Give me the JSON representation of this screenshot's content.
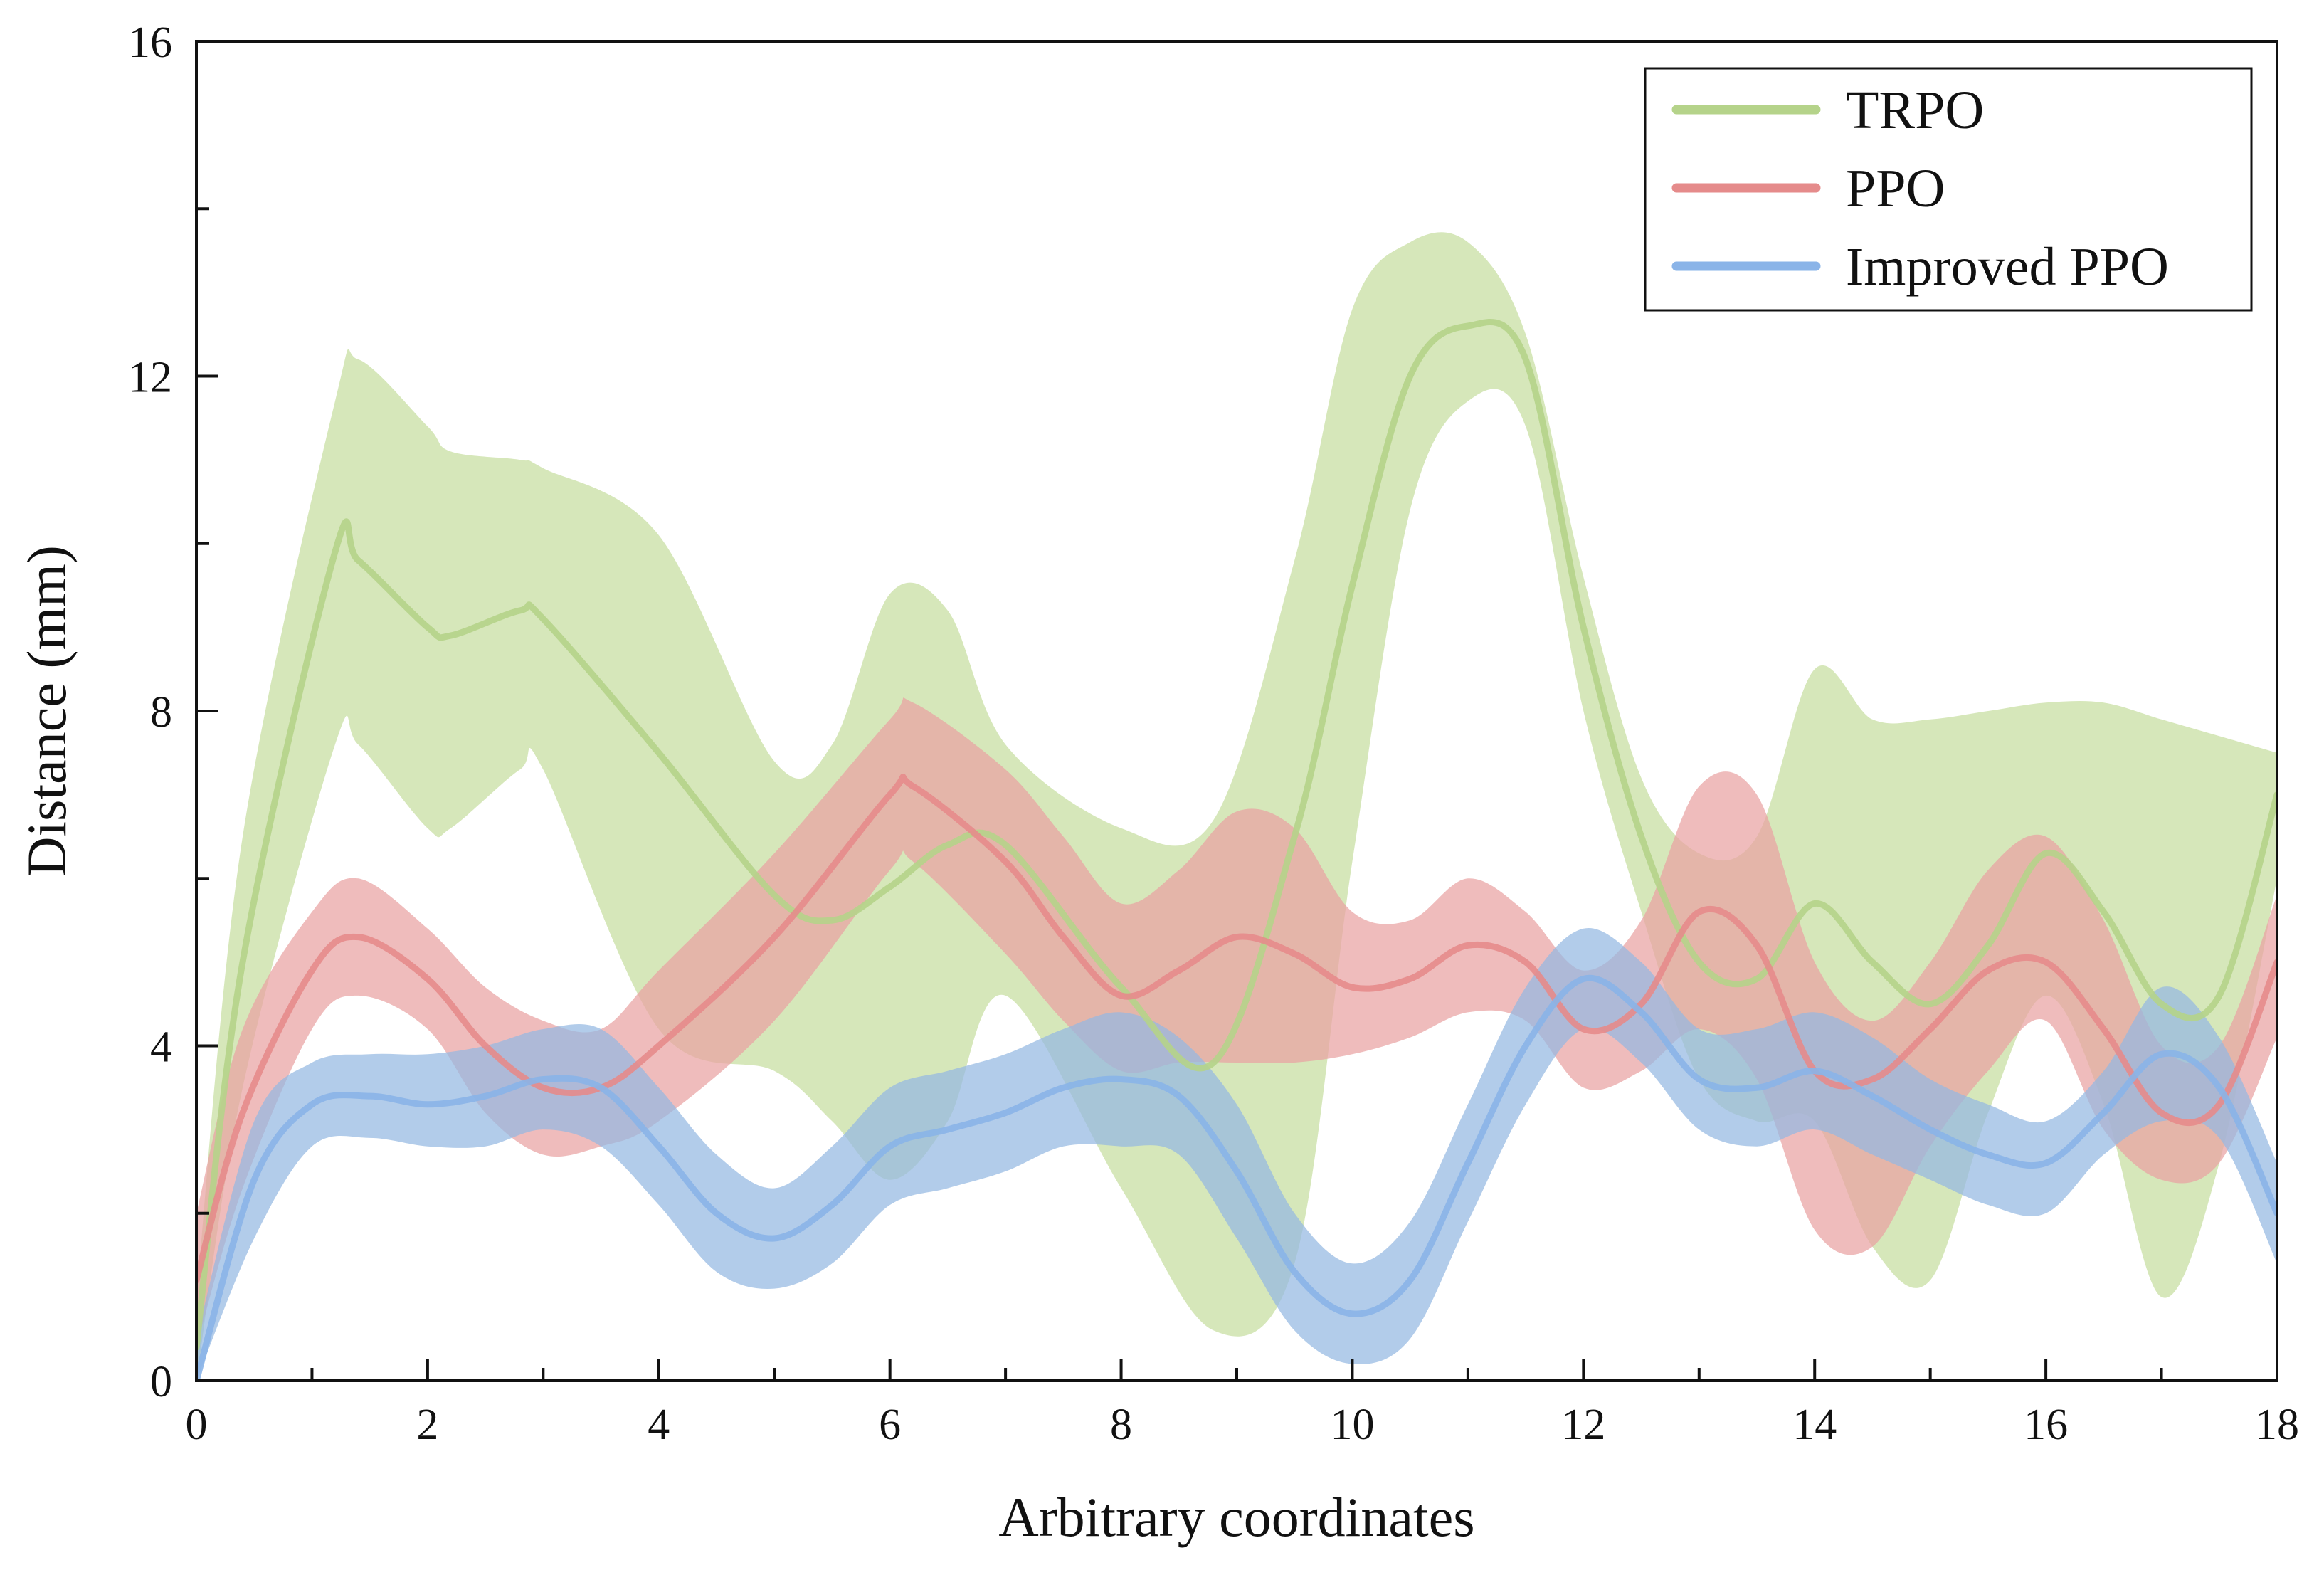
{
  "chart_data": {
    "type": "line",
    "title": "",
    "xlabel": "Arbitrary coordinates",
    "ylabel": "Distance (mm)",
    "xlim": [
      0,
      18
    ],
    "ylim": [
      0,
      16
    ],
    "xticks": [
      0,
      2,
      4,
      6,
      8,
      10,
      12,
      14,
      16,
      18
    ],
    "xtick_labels": [
      "0",
      "2",
      "4",
      "6",
      "8",
      "10",
      "12",
      "14",
      "16",
      "18"
    ],
    "yticks": [
      0,
      4,
      8,
      12,
      16
    ],
    "ytick_labels": [
      "0",
      "4",
      "8",
      "12",
      "16"
    ],
    "grid": false,
    "legend_position": "top-right",
    "series": [
      {
        "name": "TRPO",
        "line_color": "#b5d38a",
        "band_color": "#c6dea0",
        "x": [
          0,
          0.4,
          1.2,
          1.4,
          2.0,
          2.2,
          2.8,
          3.0,
          4.0,
          5.0,
          5.5,
          6.0,
          6.5,
          7.0,
          8.0,
          8.8,
          9.5,
          10.0,
          10.5,
          11.0,
          11.5,
          12.0,
          12.5,
          13.0,
          13.5,
          14.0,
          14.5,
          15.0,
          15.5,
          16.0,
          16.5,
          17.0,
          17.5,
          18.0
        ],
        "mean": [
          0.4,
          5.0,
          9.9,
          9.8,
          9.0,
          8.9,
          9.2,
          9.1,
          7.5,
          5.8,
          5.5,
          5.9,
          6.4,
          6.4,
          4.7,
          3.8,
          6.5,
          9.5,
          12.0,
          12.6,
          12.2,
          9.0,
          6.5,
          5.0,
          4.8,
          5.7,
          5.0,
          4.5,
          5.2,
          6.3,
          5.6,
          4.5,
          4.6,
          7.0
        ],
        "upper": [
          1.0,
          6.5,
          11.7,
          12.2,
          11.4,
          11.1,
          11.0,
          10.9,
          10.1,
          7.4,
          7.6,
          9.4,
          9.2,
          7.6,
          6.6,
          6.7,
          9.8,
          12.8,
          13.6,
          13.6,
          12.5,
          9.6,
          7.2,
          6.3,
          6.5,
          8.5,
          7.9,
          7.9,
          8.0,
          8.1,
          8.1,
          7.9,
          7.7,
          7.5
        ],
        "lower": [
          0.0,
          3.5,
          7.6,
          7.6,
          6.6,
          6.6,
          7.3,
          7.3,
          4.2,
          3.7,
          3.1,
          2.4,
          3.1,
          4.6,
          2.3,
          0.6,
          1.4,
          6.2,
          10.4,
          11.7,
          11.4,
          8.0,
          5.6,
          3.6,
          3.1,
          3.1,
          1.6,
          1.2,
          3.2,
          4.6,
          3.3,
          1.0,
          2.6,
          6.0
        ]
      },
      {
        "name": "PPO",
        "line_color": "#e58b8b",
        "band_color": "#e9a2a2",
        "x": [
          0,
          0.4,
          1.0,
          1.4,
          2.0,
          2.5,
          3.0,
          3.5,
          4.0,
          5.0,
          6.0,
          6.2,
          7.0,
          7.5,
          8.0,
          8.5,
          9.0,
          9.5,
          10.0,
          10.5,
          11.0,
          11.5,
          12.0,
          12.5,
          13.0,
          13.5,
          14.0,
          14.5,
          15.0,
          15.5,
          16.0,
          16.5,
          17.0,
          17.5,
          18.0
        ],
        "mean": [
          1.2,
          3.2,
          4.9,
          5.3,
          4.8,
          4.0,
          3.5,
          3.5,
          4.0,
          5.3,
          7.0,
          7.1,
          6.2,
          5.3,
          4.6,
          4.9,
          5.3,
          5.1,
          4.7,
          4.8,
          5.2,
          5.0,
          4.2,
          4.5,
          5.6,
          5.2,
          3.7,
          3.6,
          4.2,
          4.9,
          5.0,
          4.2,
          3.2,
          3.3,
          5.0
        ],
        "upper": [
          2.0,
          4.2,
          5.6,
          6.0,
          5.4,
          4.7,
          4.3,
          4.2,
          4.9,
          6.3,
          7.9,
          8.1,
          7.3,
          6.5,
          5.7,
          6.1,
          6.8,
          6.6,
          5.6,
          5.5,
          6.0,
          5.6,
          4.9,
          5.5,
          7.1,
          7.0,
          5.0,
          4.3,
          5.0,
          6.1,
          6.5,
          5.5,
          4.0,
          4.0,
          5.8
        ],
        "lower": [
          0.4,
          2.3,
          4.2,
          4.6,
          4.2,
          3.2,
          2.7,
          2.8,
          3.1,
          4.3,
          6.1,
          6.2,
          5.1,
          4.3,
          3.7,
          3.8,
          3.8,
          3.8,
          3.9,
          4.1,
          4.4,
          4.3,
          3.5,
          3.7,
          4.2,
          3.6,
          1.8,
          1.6,
          2.8,
          3.7,
          4.3,
          3.0,
          2.4,
          2.6,
          4.1
        ]
      },
      {
        "name": "Improved PPO",
        "line_color": "#8ab4e8",
        "band_color": "#94b8e2",
        "x": [
          0,
          0.5,
          1.0,
          1.5,
          2.0,
          2.5,
          3.0,
          3.5,
          4.0,
          4.5,
          5.0,
          5.5,
          6.0,
          6.5,
          7.0,
          7.5,
          8.0,
          8.5,
          9.0,
          9.5,
          10.0,
          10.5,
          11.0,
          11.5,
          12.0,
          12.5,
          13.0,
          13.5,
          14.0,
          14.5,
          15.0,
          15.5,
          16.0,
          16.5,
          17.0,
          17.5,
          18.0
        ],
        "mean": [
          0.0,
          2.4,
          3.3,
          3.4,
          3.3,
          3.4,
          3.6,
          3.5,
          2.8,
          2.0,
          1.7,
          2.1,
          2.8,
          3.0,
          3.2,
          3.5,
          3.6,
          3.4,
          2.5,
          1.3,
          0.8,
          1.2,
          2.6,
          4.0,
          4.8,
          4.4,
          3.6,
          3.5,
          3.7,
          3.4,
          3.0,
          2.7,
          2.6,
          3.2,
          3.9,
          3.5,
          2.0
        ],
        "upper": [
          0.5,
          3.1,
          3.8,
          3.9,
          3.9,
          4.0,
          4.2,
          4.2,
          3.5,
          2.7,
          2.3,
          2.8,
          3.5,
          3.7,
          3.9,
          4.2,
          4.4,
          4.1,
          3.3,
          2.0,
          1.4,
          1.9,
          3.3,
          4.7,
          5.4,
          5.0,
          4.2,
          4.2,
          4.4,
          4.1,
          3.6,
          3.3,
          3.1,
          3.7,
          4.7,
          4.1,
          2.6
        ],
        "lower": [
          0.0,
          1.7,
          2.8,
          2.9,
          2.8,
          2.8,
          3.0,
          2.8,
          2.1,
          1.3,
          1.1,
          1.4,
          2.1,
          2.3,
          2.5,
          2.8,
          2.8,
          2.7,
          1.7,
          0.6,
          0.2,
          0.5,
          1.9,
          3.3,
          4.2,
          3.8,
          3.0,
          2.8,
          3.0,
          2.7,
          2.4,
          2.1,
          2.0,
          2.7,
          3.1,
          2.9,
          1.4
        ]
      }
    ]
  }
}
